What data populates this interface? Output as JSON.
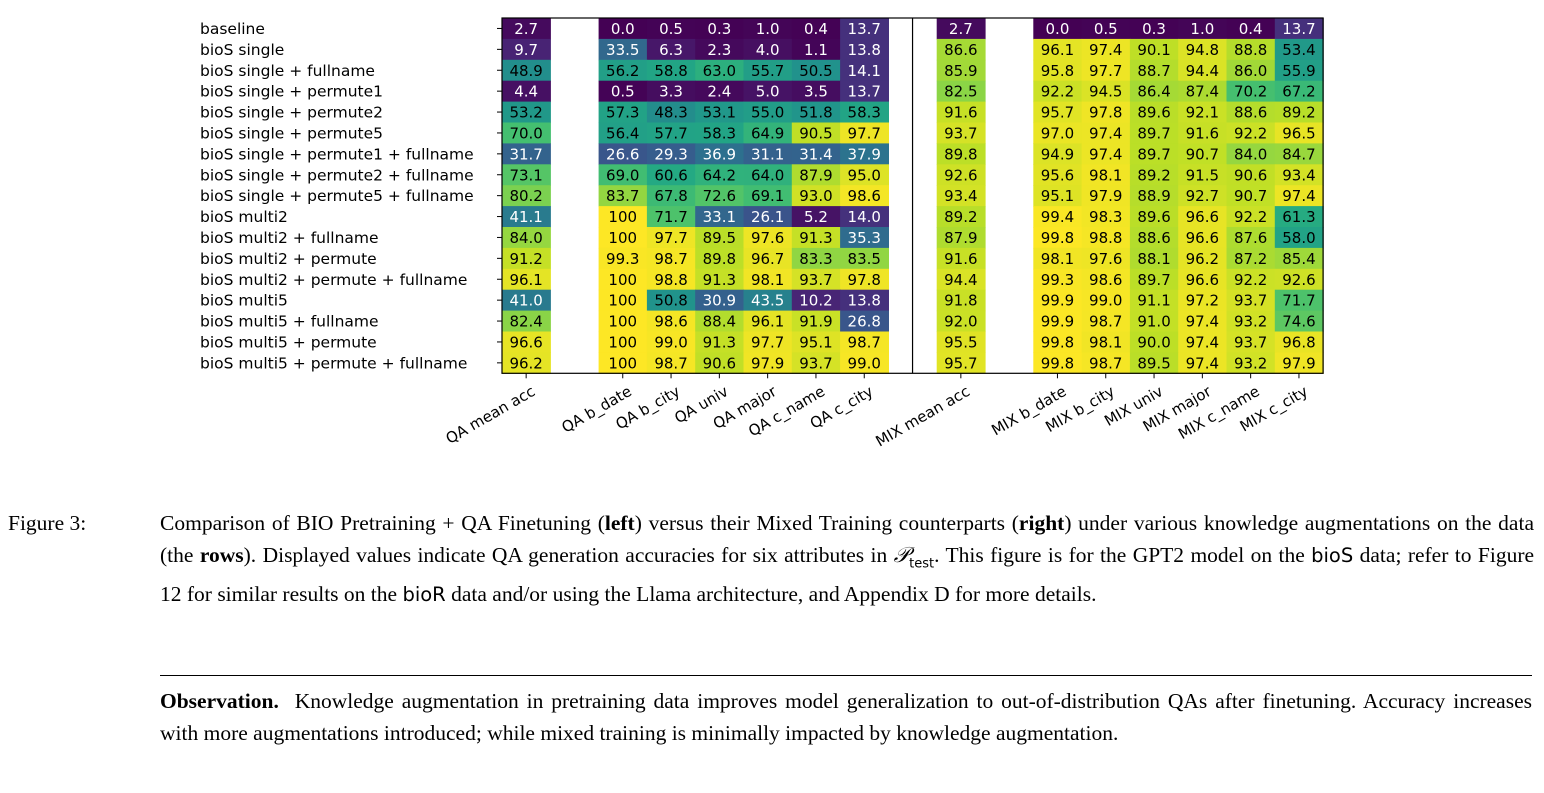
{
  "figure": {
    "chart_data": {
      "type": "heatmap",
      "colormap": "viridis",
      "value_range": [
        0,
        100
      ],
      "rows": [
        "baseline",
        "bioS single",
        "bioS single                + fullname",
        "bioS single + permute1",
        "bioS single + permute2",
        "bioS single + permute5",
        "bioS single + permute1 + fullname",
        "bioS single + permute2 + fullname",
        "bioS single + permute5 + fullname",
        "bioS multi2",
        "bioS multi2                 + fullname",
        "bioS multi2 + permute",
        "bioS multi2 + permute  + fullname",
        "bioS multi5",
        "bioS multi5                 + fullname",
        "bioS multi5 + permute",
        "bioS multi5 + permute  + fullname"
      ],
      "columns": [
        "QA mean acc",
        "",
        "QA b_date",
        "QA b_city",
        "QA univ",
        "QA major",
        "QA c_name",
        "QA c_city",
        "",
        "MIX mean acc",
        "",
        "MIX b_date",
        "MIX b_city",
        "MIX univ",
        "MIX major",
        "MIX c_name",
        "MIX c_city"
      ],
      "values": [
        [
          "2.7",
          "",
          "0.0",
          "0.5",
          "0.3",
          "1.0",
          "0.4",
          "13.7",
          "",
          "2.7",
          "",
          "0.0",
          "0.5",
          "0.3",
          "1.0",
          "0.4",
          "13.7"
        ],
        [
          "9.7",
          "",
          "33.5",
          "6.3",
          "2.3",
          "4.0",
          "1.1",
          "13.8",
          "",
          "86.6",
          "",
          "96.1",
          "97.4",
          "90.1",
          "94.8",
          "88.8",
          "53.4"
        ],
        [
          "48.9",
          "",
          "56.2",
          "58.8",
          "63.0",
          "55.7",
          "50.5",
          "14.1",
          "",
          "85.9",
          "",
          "95.8",
          "97.7",
          "88.7",
          "94.4",
          "86.0",
          "55.9"
        ],
        [
          "4.4",
          "",
          "0.5",
          "3.3",
          "2.4",
          "5.0",
          "3.5",
          "13.7",
          "",
          "82.5",
          "",
          "92.2",
          "94.5",
          "86.4",
          "87.4",
          "70.2",
          "67.2"
        ],
        [
          "53.2",
          "",
          "57.3",
          "48.3",
          "53.1",
          "55.0",
          "51.8",
          "58.3",
          "",
          "91.6",
          "",
          "95.7",
          "97.8",
          "89.6",
          "92.1",
          "88.6",
          "89.2"
        ],
        [
          "70.0",
          "",
          "56.4",
          "57.7",
          "58.3",
          "64.9",
          "90.5",
          "97.7",
          "",
          "93.7",
          "",
          "97.0",
          "97.4",
          "89.7",
          "91.6",
          "92.2",
          "96.5"
        ],
        [
          "31.7",
          "",
          "26.6",
          "29.3",
          "36.9",
          "31.1",
          "31.4",
          "37.9",
          "",
          "89.8",
          "",
          "94.9",
          "97.4",
          "89.7",
          "90.7",
          "84.0",
          "84.7"
        ],
        [
          "73.1",
          "",
          "69.0",
          "60.6",
          "64.2",
          "64.0",
          "87.9",
          "95.0",
          "",
          "92.6",
          "",
          "95.6",
          "98.1",
          "89.2",
          "91.5",
          "90.6",
          "93.4"
        ],
        [
          "80.2",
          "",
          "83.7",
          "67.8",
          "72.6",
          "69.1",
          "93.0",
          "98.6",
          "",
          "93.4",
          "",
          "95.1",
          "97.9",
          "88.9",
          "92.7",
          "90.7",
          "97.4"
        ],
        [
          "41.1",
          "",
          "100",
          "71.7",
          "33.1",
          "26.1",
          "5.2",
          "14.0",
          "",
          "89.2",
          "",
          "99.4",
          "98.3",
          "89.6",
          "96.6",
          "92.2",
          "61.3"
        ],
        [
          "84.0",
          "",
          "100",
          "97.7",
          "89.5",
          "97.6",
          "91.3",
          "35.3",
          "",
          "87.9",
          "",
          "99.8",
          "98.8",
          "88.6",
          "96.6",
          "87.6",
          "58.0"
        ],
        [
          "91.2",
          "",
          "99.3",
          "98.7",
          "89.8",
          "96.7",
          "83.3",
          "83.5",
          "",
          "91.6",
          "",
          "98.1",
          "97.6",
          "88.1",
          "96.2",
          "87.2",
          "85.4"
        ],
        [
          "96.1",
          "",
          "100",
          "98.8",
          "91.3",
          "98.1",
          "93.7",
          "97.8",
          "",
          "94.4",
          "",
          "99.3",
          "98.6",
          "89.7",
          "96.6",
          "92.2",
          "92.6"
        ],
        [
          "41.0",
          "",
          "100",
          "50.8",
          "30.9",
          "43.5",
          "10.2",
          "13.8",
          "",
          "91.8",
          "",
          "99.9",
          "99.0",
          "91.1",
          "97.2",
          "93.7",
          "71.7"
        ],
        [
          "82.4",
          "",
          "100",
          "98.6",
          "88.4",
          "96.1",
          "91.9",
          "26.8",
          "",
          "92.0",
          "",
          "99.9",
          "98.7",
          "91.0",
          "97.4",
          "93.2",
          "74.6"
        ],
        [
          "96.6",
          "",
          "100",
          "99.0",
          "91.3",
          "97.7",
          "95.1",
          "98.7",
          "",
          "95.5",
          "",
          "99.8",
          "98.1",
          "90.0",
          "97.4",
          "93.7",
          "96.8"
        ],
        [
          "96.2",
          "",
          "100",
          "98.7",
          "90.6",
          "97.9",
          "93.7",
          "99.0",
          "",
          "95.7",
          "",
          "99.8",
          "98.7",
          "89.5",
          "97.4",
          "93.2",
          "97.9"
        ]
      ]
    }
  },
  "caption": {
    "prefix": "Figure 3:",
    "t1": "Comparison of BIO Pretraining + QA Finetuning (",
    "b1": "left",
    "t2": ") versus their Mixed Training counterparts (",
    "b2": "right",
    "t3": ") under various knowledge augmentations on the data (the ",
    "b3": "rows",
    "t4": "). Displayed values indicate QA generation accuracies for six attributes in ",
    "math_p": "𝒫",
    "math_sub": "test",
    "t5": ". This figure is for the GPT2 model on the ",
    "s1": "bioS",
    "t6": " data; refer to Figure 12 for similar results on the ",
    "s2": "bioR",
    "t7": " data and/or using the Llama architecture, and Appendix D for more details."
  },
  "observation": {
    "label": "Observation.",
    "text": "Knowledge augmentation in pretraining data improves model generalization to out-of-distribution QAs after finetuning. Accuracy increases with more augmentations introduced; while mixed training is minimally impacted by knowledge augmentation."
  }
}
